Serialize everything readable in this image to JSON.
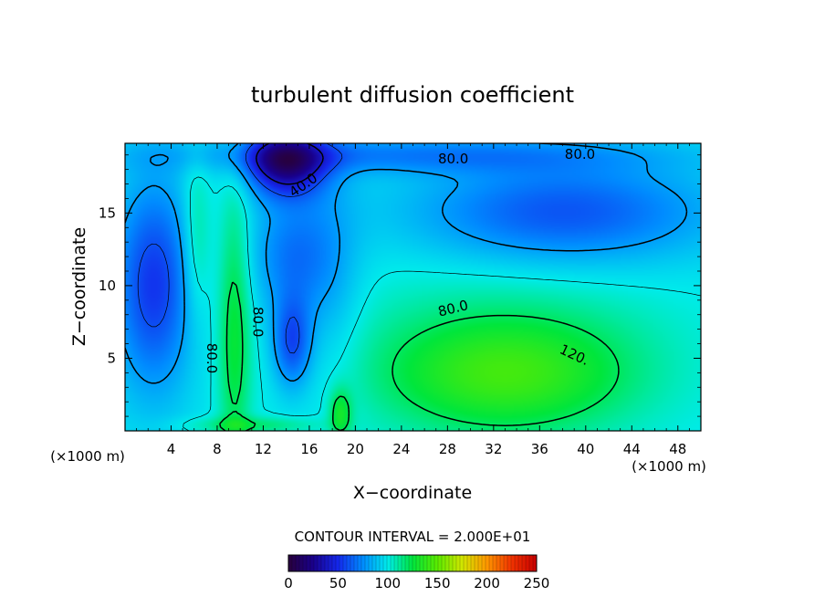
{
  "chart_data": {
    "type": "heatmap",
    "title": "turbulent diffusion coefficient",
    "xlabel": "X−coordinate",
    "ylabel": "Z−coordinate",
    "x_unit_left": "(×1000 m)",
    "x_unit_right": "(×1000 m)",
    "xlim": [
      0,
      50
    ],
    "ylim": [
      0,
      19.8
    ],
    "xticks": [
      4,
      8,
      12,
      16,
      20,
      24,
      28,
      32,
      36,
      40,
      44,
      48
    ],
    "yticks": [
      5,
      10,
      15
    ],
    "contour_interval_text": "CONTOUR INTERVAL = 2.000E+01",
    "contour_labels": [
      {
        "text": "80.0",
        "x": 28.5,
        "y": 8.4,
        "rot": -14
      },
      {
        "text": "120.",
        "x": 39,
        "y": 5.2,
        "rot": 25
      },
      {
        "text": "80.0",
        "x": 28.5,
        "y": 18.7,
        "rot": 0
      },
      {
        "text": "80.0",
        "x": 39.5,
        "y": 19.0,
        "rot": 0
      },
      {
        "text": "40.0",
        "x": 15.5,
        "y": 16.9,
        "rot": -35
      },
      {
        "text": "80.0",
        "x": 11.5,
        "y": 7.5,
        "rot": 90
      },
      {
        "text": "80.0",
        "x": 7.5,
        "y": 5.0,
        "rot": 90
      }
    ],
    "colorbar": {
      "range": [
        0,
        250
      ],
      "ticks": [
        0,
        50,
        100,
        150,
        200,
        250
      ],
      "colormap": "rainbow (purple-blue-cyan-green-yellow-red)"
    },
    "features": [
      {
        "name": "central maximum",
        "x_center": 33,
        "z_center": 4,
        "value": 130
      },
      {
        "name": "upper-left minimum",
        "x_center": 14,
        "z_center": 18.5,
        "value": 15
      },
      {
        "name": "low-level minimum",
        "x_center": 14.5,
        "z_center": 6,
        "value": 25
      },
      {
        "name": "left minimum",
        "x_center": 2.5,
        "z_center": 10,
        "value": 45
      }
    ]
  }
}
